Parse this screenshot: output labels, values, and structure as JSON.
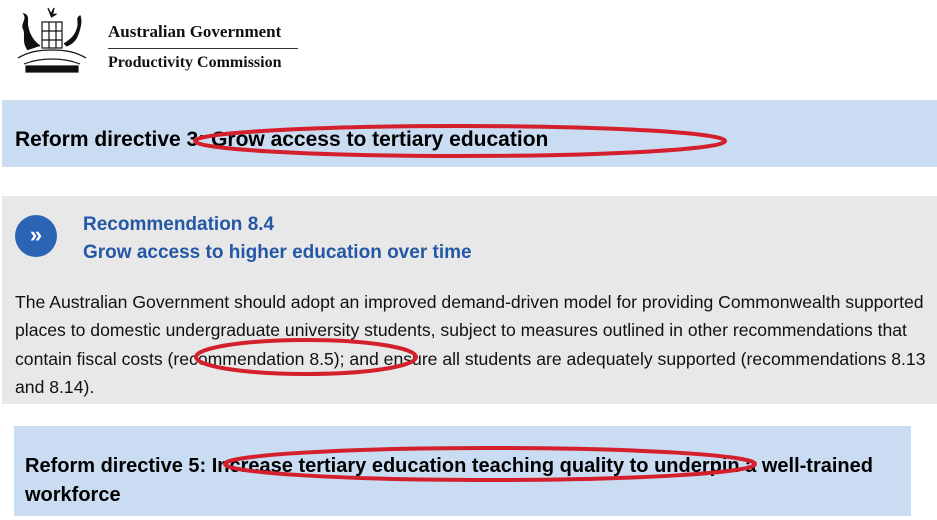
{
  "header": {
    "org_line1": "Australian Government",
    "org_line2": "Productivity Commission"
  },
  "directive_a": {
    "title": "Reform directive 3: Grow access to tertiary education"
  },
  "recommendation": {
    "icon": "double-chevron-right-icon",
    "number": "Recommendation 8.4",
    "title": "Grow access to higher education over time",
    "body": "The Australian Government should adopt an improved demand-driven model for providing Commonwealth supported places to domestic undergraduate university students, subject to measures outlined in other recommendations that contain fiscal costs (recommendation 8.5); and ensure all students are adequately supported (recommendations 8.13 and 8.14)."
  },
  "directive_b": {
    "title": "Reform directive 5: Increase tertiary education teaching quality to underpin a well-trained workforce"
  },
  "colors": {
    "banner": "#c9dcf2",
    "rec_box": "#e8e8e8",
    "accent_blue": "#2458a7",
    "highlight_red": "#d4202c"
  }
}
